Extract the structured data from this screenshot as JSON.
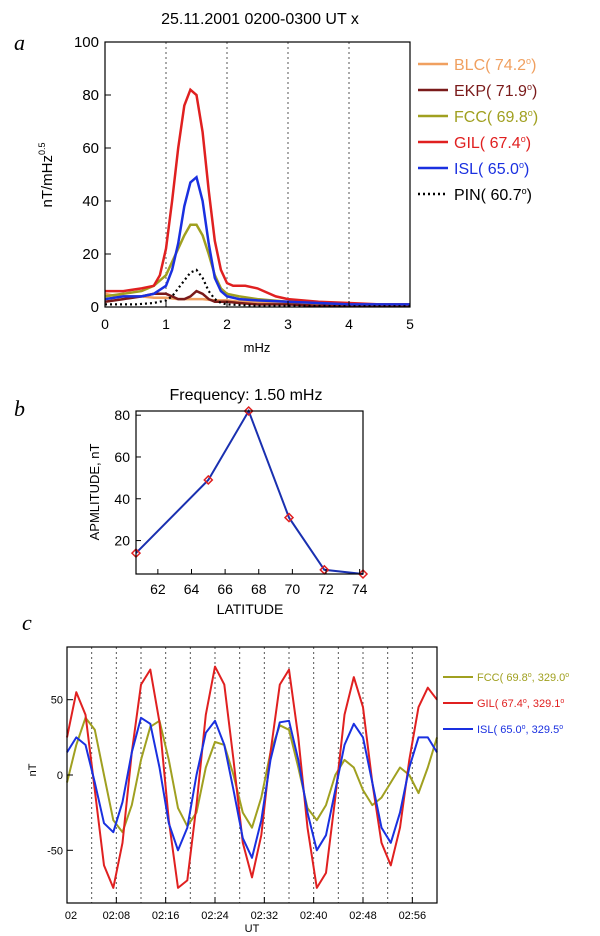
{
  "panels": {
    "a": "a",
    "b": "b",
    "c": "c"
  },
  "chart_data": [
    {
      "type": "line",
      "title": "25.11.2001     0200-0300 UT     x",
      "xlabel": "mHz",
      "ylabel": "nT/mHz",
      "ylabel_sup": "0.5",
      "xlim": [
        0,
        5
      ],
      "ylim": [
        0,
        100
      ],
      "x_ticks": [
        "0",
        "1",
        "2",
        "3",
        "4",
        "5"
      ],
      "y_ticks": [
        "0",
        "20",
        "40",
        "60",
        "80",
        "100"
      ],
      "vgrid_dotted": [
        1,
        2,
        3,
        4
      ],
      "legend_position": "right",
      "series": [
        {
          "name": "BLC",
          "lat": "74.2",
          "color": "#f0a060",
          "dash": false,
          "x": [
            0,
            0.2,
            0.4,
            0.6,
            0.8,
            1.0,
            1.2,
            1.4,
            1.6,
            1.8,
            2.0,
            2.2,
            2.5,
            3.0,
            3.5,
            4.0,
            4.5,
            5.0
          ],
          "y": [
            5,
            4,
            4,
            4,
            3.5,
            3.5,
            3,
            3,
            3,
            2.5,
            2.5,
            2,
            2,
            1.5,
            1.5,
            1,
            1,
            1
          ]
        },
        {
          "name": "EKP",
          "lat": "71.9",
          "color": "#7a1a1a",
          "dash": false,
          "x": [
            0,
            0.3,
            0.6,
            0.8,
            1.0,
            1.1,
            1.2,
            1.3,
            1.4,
            1.5,
            1.6,
            1.7,
            1.8,
            2.0,
            2.2,
            2.5,
            3.0,
            3.5,
            4.0,
            4.5,
            5.0
          ],
          "y": [
            2,
            3,
            4,
            5,
            5,
            4,
            3,
            3,
            4,
            6,
            5,
            3,
            2,
            2,
            1.5,
            1,
            1,
            0.5,
            0.5,
            0.5,
            0.5
          ]
        },
        {
          "name": "FCC",
          "lat": "69.8",
          "color": "#a0a020",
          "dash": false,
          "x": [
            0,
            0.3,
            0.6,
            0.8,
            1.0,
            1.1,
            1.2,
            1.3,
            1.4,
            1.5,
            1.6,
            1.7,
            1.8,
            1.9,
            2.0,
            2.2,
            2.5,
            3.0,
            3.5,
            4.0,
            4.5,
            5.0
          ],
          "y": [
            4,
            5,
            6,
            8,
            12,
            17,
            22,
            27,
            31,
            31,
            27,
            20,
            12,
            7,
            5,
            4,
            3,
            2,
            1.5,
            1,
            1,
            1
          ]
        },
        {
          "name": "GIL",
          "lat": "67.4",
          "color": "#e02020",
          "dash": false,
          "x": [
            0,
            0.3,
            0.6,
            0.8,
            0.9,
            1.0,
            1.1,
            1.2,
            1.3,
            1.4,
            1.5,
            1.6,
            1.7,
            1.8,
            1.9,
            2.0,
            2.1,
            2.3,
            2.5,
            2.8,
            3.0,
            3.5,
            4.0,
            4.5,
            5.0
          ],
          "y": [
            6,
            6,
            7,
            8,
            12,
            22,
            40,
            60,
            76,
            82,
            80,
            66,
            44,
            25,
            14,
            9,
            8,
            8,
            7,
            4,
            3,
            2,
            1.5,
            1,
            1
          ]
        },
        {
          "name": "ISL",
          "lat": "65.0",
          "color": "#1a30e0",
          "dash": false,
          "x": [
            0,
            0.3,
            0.6,
            0.8,
            1.0,
            1.1,
            1.2,
            1.3,
            1.4,
            1.5,
            1.6,
            1.7,
            1.8,
            1.9,
            2.0,
            2.2,
            2.5,
            3.0,
            3.5,
            4.0,
            4.5,
            5.0
          ],
          "y": [
            3,
            4,
            4,
            5,
            8,
            14,
            24,
            38,
            47,
            49,
            40,
            24,
            11,
            6,
            4,
            3,
            2.5,
            2,
            1.5,
            1,
            1,
            1
          ]
        },
        {
          "name": "PIN",
          "lat": "60.7",
          "color": "#000000",
          "dash": true,
          "x": [
            0,
            0.5,
            0.8,
            1.0,
            1.1,
            1.2,
            1.3,
            1.4,
            1.5,
            1.6,
            1.7,
            1.8,
            1.9,
            2.0,
            2.5,
            3.0,
            4.0,
            5.0
          ],
          "y": [
            1,
            1,
            1.5,
            2.5,
            4,
            7,
            10,
            13,
            14,
            11,
            6,
            3,
            1.5,
            1,
            0.5,
            0.5,
            0.3,
            0.3
          ]
        }
      ]
    },
    {
      "type": "line",
      "title": "Frequency: 1.50 mHz",
      "xlabel": "LATITUDE",
      "ylabel": "APMLITUDE, nT",
      "xlim": [
        60.7,
        74.2
      ],
      "ylim": [
        4,
        82
      ],
      "x_ticks": [
        "62",
        "64",
        "66",
        "68",
        "70",
        "72",
        "74"
      ],
      "y_ticks": [
        "20",
        "40",
        "60",
        "80"
      ],
      "line_color": "#1a30b0",
      "marker_color": "#e02020",
      "series": [
        {
          "x": [
            60.7,
            65.0,
            67.4,
            69.8,
            71.9,
            74.2
          ],
          "y": [
            14,
            49,
            82,
            31,
            6,
            4
          ]
        }
      ]
    },
    {
      "type": "line",
      "xlabel": "UT",
      "ylabel": "nT",
      "xlim": [
        0,
        60
      ],
      "ylim": [
        -85,
        85
      ],
      "x_ticks": [
        "02",
        "02:08",
        "02:16",
        "02:24",
        "02:32",
        "02:40",
        "02:48",
        "02:56"
      ],
      "x_tick_minutes": [
        0,
        8,
        16,
        24,
        32,
        40,
        48,
        56
      ],
      "y_ticks": [
        "50",
        "0",
        "-50"
      ],
      "vgrid_dotted_minutes": [
        4,
        8,
        12,
        16,
        20,
        24,
        28,
        32,
        36,
        40,
        44,
        48,
        52,
        56
      ],
      "legend_position": "right",
      "series": [
        {
          "name": "FCC",
          "lat": "69.8",
          "lon": "329.0",
          "color": "#a0a020",
          "x": [
            0,
            1.5,
            3,
            4.5,
            6,
            7.5,
            9,
            10.5,
            12,
            13.5,
            15,
            16.5,
            18,
            19.5,
            21,
            22.5,
            24,
            25.5,
            27,
            28.5,
            30,
            31.5,
            33,
            34.5,
            36,
            37.5,
            39,
            40.5,
            42,
            43.5,
            45,
            46.5,
            48,
            49.5,
            51,
            52.5,
            54,
            55.5,
            57,
            58.5,
            60
          ],
          "y": [
            -5,
            20,
            38,
            30,
            0,
            -30,
            -38,
            -20,
            10,
            32,
            36,
            10,
            -22,
            -34,
            -25,
            5,
            22,
            20,
            0,
            -25,
            -35,
            -15,
            15,
            33,
            30,
            5,
            -22,
            -30,
            -20,
            0,
            10,
            5,
            -10,
            -20,
            -15,
            -5,
            5,
            0,
            -12,
            5,
            25
          ]
        },
        {
          "name": "GIL",
          "lat": "67.4",
          "lon": "329.1",
          "color": "#e02020",
          "x": [
            0,
            1.5,
            3,
            4.5,
            6,
            7.5,
            9,
            10.5,
            12,
            13.5,
            15,
            16.5,
            18,
            19.5,
            21,
            22.5,
            24,
            25.5,
            27,
            28.5,
            30,
            31.5,
            33,
            34.5,
            36,
            37.5,
            39,
            40.5,
            42,
            43.5,
            45,
            46.5,
            48,
            49.5,
            51,
            52.5,
            54,
            55.5,
            57,
            58.5,
            60
          ],
          "y": [
            25,
            55,
            40,
            -10,
            -60,
            -75,
            -45,
            15,
            60,
            70,
            35,
            -30,
            -75,
            -70,
            -20,
            40,
            72,
            60,
            10,
            -45,
            -68,
            -40,
            15,
            60,
            70,
            25,
            -35,
            -75,
            -65,
            -15,
            40,
            65,
            45,
            -5,
            -45,
            -60,
            -35,
            10,
            45,
            58,
            50
          ]
        },
        {
          "name": "ISL",
          "lat": "65.0",
          "lon": "329.5",
          "color": "#1a30e0",
          "x": [
            0,
            1.5,
            3,
            4.5,
            6,
            7.5,
            9,
            10.5,
            12,
            13.5,
            15,
            16.5,
            18,
            19.5,
            21,
            22.5,
            24,
            25.5,
            27,
            28.5,
            30,
            31.5,
            33,
            34.5,
            36,
            37.5,
            39,
            40.5,
            42,
            43.5,
            45,
            46.5,
            48,
            49.5,
            51,
            52.5,
            54,
            55.5,
            57,
            58.5,
            60
          ],
          "y": [
            15,
            25,
            20,
            -5,
            -32,
            -38,
            -18,
            15,
            38,
            34,
            5,
            -32,
            -50,
            -35,
            0,
            28,
            36,
            20,
            -10,
            -42,
            -55,
            -30,
            10,
            35,
            36,
            10,
            -25,
            -50,
            -40,
            -10,
            20,
            34,
            25,
            -5,
            -35,
            -45,
            -25,
            5,
            25,
            25,
            15
          ]
        }
      ]
    }
  ]
}
